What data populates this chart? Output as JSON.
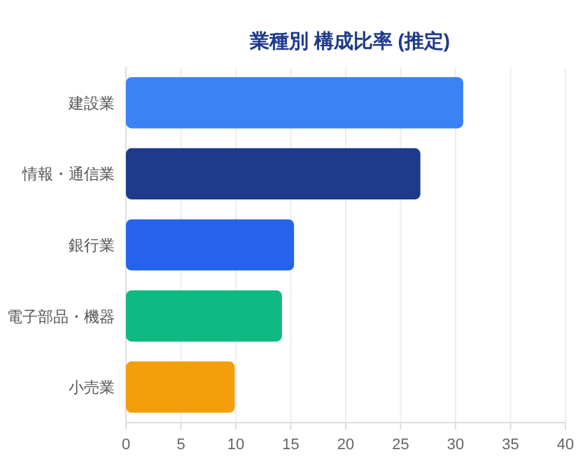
{
  "chart_data": {
    "type": "bar",
    "orientation": "horizontal",
    "title": "業種別 構成比率 (推定)",
    "categories": [
      "建設業",
      "情報・通信業",
      "銀行業",
      "電子部品・機器",
      "小売業"
    ],
    "values": [
      30.7,
      26.8,
      15.3,
      14.2,
      9.9
    ],
    "colors": [
      "#3b82f6",
      "#1e3a8a",
      "#2563eb",
      "#10b981",
      "#f59e0b"
    ],
    "xlim": [
      0,
      40
    ],
    "xticks": [
      0,
      5,
      10,
      15,
      20,
      25,
      30,
      35,
      40
    ],
    "grid": "x"
  }
}
